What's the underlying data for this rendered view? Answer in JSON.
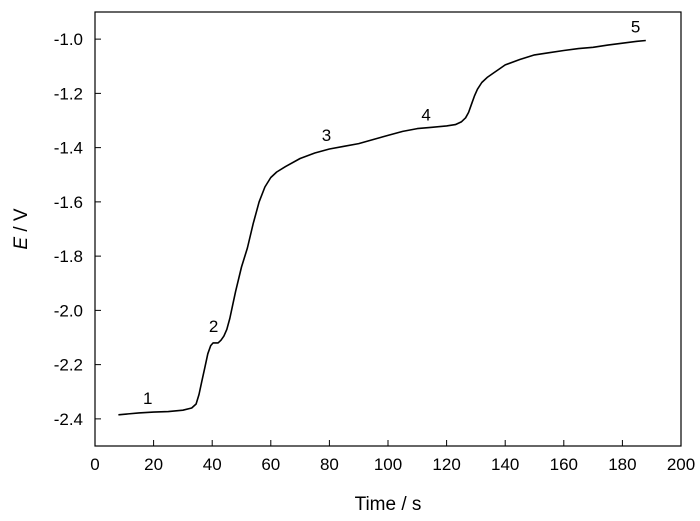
{
  "chart_data": {
    "type": "line",
    "xlabel": "Time / s",
    "ylabel_italic": "E",
    "ylabel_rest": " / V",
    "xlim": [
      0,
      200
    ],
    "ylim": [
      -2.5,
      -0.9
    ],
    "xticks": [
      0,
      20,
      40,
      60,
      80,
      100,
      120,
      140,
      160,
      180,
      200
    ],
    "yticks": [
      -2.4,
      -2.2,
      -2.0,
      -1.8,
      -1.6,
      -1.4,
      -1.2,
      -1.0
    ],
    "xtick_labels": [
      "0",
      "20",
      "40",
      "60",
      "80",
      "100",
      "120",
      "140",
      "160",
      "180",
      "200"
    ],
    "ytick_labels": [
      "-2.4",
      "-2.2",
      "-2.0",
      "-1.8",
      "-1.6",
      "-1.4",
      "-1.2",
      "-1.0"
    ],
    "grid": false,
    "series": [
      {
        "x": [
          8,
          15,
          20,
          25,
          30,
          33,
          34.5,
          35.5,
          36.5,
          37.5,
          38.5,
          39.5,
          40.3,
          41,
          42,
          43,
          44,
          45,
          46,
          47,
          48,
          50,
          52,
          54,
          56,
          58,
          60,
          62,
          65,
          70,
          75,
          80,
          85,
          90,
          95,
          100,
          105,
          110,
          115,
          120,
          123,
          125,
          126.5,
          127.5,
          128.5,
          129.5,
          130.5,
          132,
          134,
          136,
          138,
          140,
          145,
          150,
          155,
          160,
          165,
          170,
          175,
          180,
          185,
          188
        ],
        "y": [
          -2.385,
          -2.378,
          -2.375,
          -2.373,
          -2.368,
          -2.36,
          -2.345,
          -2.31,
          -2.26,
          -2.21,
          -2.16,
          -2.13,
          -2.12,
          -2.12,
          -2.12,
          -2.11,
          -2.095,
          -2.07,
          -2.03,
          -1.98,
          -1.93,
          -1.84,
          -1.77,
          -1.68,
          -1.6,
          -1.545,
          -1.51,
          -1.49,
          -1.47,
          -1.44,
          -1.42,
          -1.405,
          -1.395,
          -1.385,
          -1.37,
          -1.355,
          -1.34,
          -1.33,
          -1.325,
          -1.32,
          -1.315,
          -1.305,
          -1.29,
          -1.27,
          -1.24,
          -1.21,
          -1.185,
          -1.16,
          -1.14,
          -1.125,
          -1.11,
          -1.095,
          -1.075,
          -1.058,
          -1.05,
          -1.042,
          -1.035,
          -1.03,
          -1.022,
          -1.015,
          -1.008,
          -1.005
        ]
      }
    ],
    "annotations": [
      {
        "text": "1",
        "x": 18,
        "y": -2.345
      },
      {
        "text": "2",
        "x": 40.5,
        "y": -2.08
      },
      {
        "text": "3",
        "x": 79,
        "y": -1.375
      },
      {
        "text": "4",
        "x": 113,
        "y": -1.3
      },
      {
        "text": "5",
        "x": 184.5,
        "y": -0.975
      }
    ]
  }
}
